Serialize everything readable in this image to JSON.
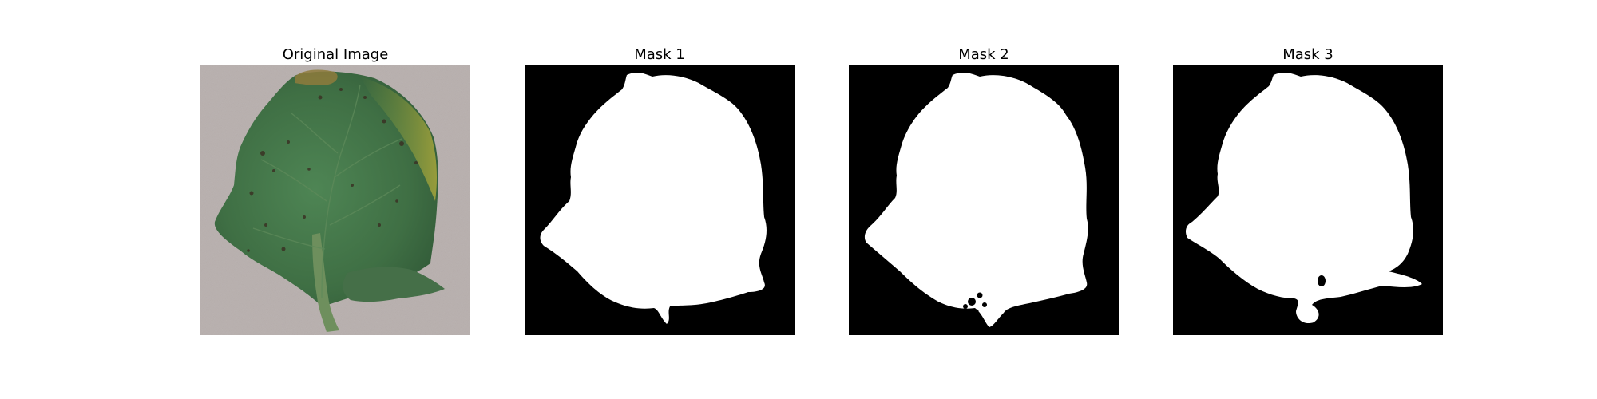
{
  "figure": {
    "panels": [
      {
        "title": "Original Image",
        "content": "photo of a green tomato leaf with dark spots and yellowed edges on a grey background"
      },
      {
        "title": "Mask 1",
        "content": "binary mask: white leaf silhouette on black background"
      },
      {
        "title": "Mask 2",
        "content": "binary mask: white leaf silhouette on black background"
      },
      {
        "title": "Mask 3",
        "content": "binary mask: white leaf silhouette on black background"
      }
    ]
  },
  "colors": {
    "mask_foreground": "#ffffff",
    "mask_background": "#000000",
    "leaf_green": "#4a7a4c",
    "background_grey": "#b0a8a6"
  }
}
